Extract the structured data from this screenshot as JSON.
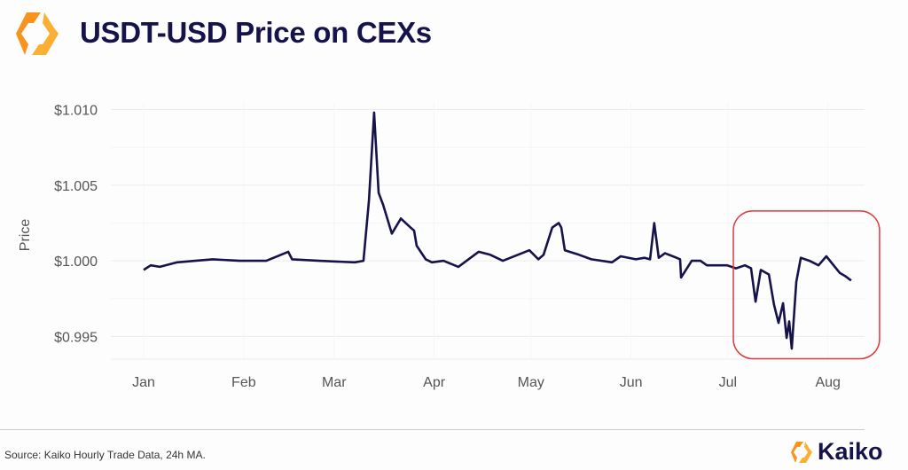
{
  "header": {
    "title": "USDT-USD Price on CEXs",
    "logo_icon": "kaiko-hex-logo-icon"
  },
  "footer": {
    "source": "Source: Kaiko Hourly Trade Data, 24h MA.",
    "brand": "Kaiko"
  },
  "colors": {
    "line": "#16124a",
    "highlight": "#e0393e",
    "logo_orange": "#f7941d",
    "logo_yellow": "#fbb034"
  },
  "chart_data": {
    "type": "line",
    "title": "USDT-USD Price on CEXs",
    "xlabel": "",
    "ylabel": "Price",
    "x_unit": "day of year (0 = Jan 1)",
    "xlim": [
      0,
      228
    ],
    "ylim": [
      0.9935,
      1.0105
    ],
    "grid": true,
    "x_ticks": [
      {
        "label": "Jan",
        "day": 0
      },
      {
        "label": "Feb",
        "day": 31
      },
      {
        "label": "Mar",
        "day": 59
      },
      {
        "label": "Apr",
        "day": 90
      },
      {
        "label": "May",
        "day": 120
      },
      {
        "label": "Jun",
        "day": 151
      },
      {
        "label": "Jul",
        "day": 181
      },
      {
        "label": "Aug",
        "day": 212
      }
    ],
    "y_ticks": [
      {
        "label": "$1.010",
        "value": 1.01
      },
      {
        "label": "$1.005",
        "value": 1.005
      },
      {
        "label": "$1.000",
        "value": 1.0
      },
      {
        "label": "$0.995",
        "value": 0.995
      }
    ],
    "series": [
      {
        "name": "USDT-USD",
        "x": [
          0,
          2.2,
          5,
          10.4,
          16,
          21.4,
          29.7,
          38,
          44.8,
          46,
          54.4,
          65.4,
          68.1,
          69.8,
          71.4,
          72.8,
          74.2,
          76.9,
          79.7,
          82.7,
          83.8,
          84.6,
          87.4,
          89.3,
          92.9,
          97.5,
          103.8,
          107.4,
          111.3,
          119.5,
          122.3,
          123.9,
          126.6,
          128.6,
          129.4,
          130.5,
          134.9,
          138.7,
          145.1,
          147.8,
          152.5,
          155.2,
          156.9,
          158.2,
          159.6,
          161.5,
          165.1,
          166.2,
          166.5,
          169.8,
          172.5,
          174.5,
          180.8,
          183.5,
          186.3,
          188.2,
          189.6,
          191.2,
          193.7,
          195.3,
          196.7,
          198.1,
          199.2,
          200,
          200.8,
          202.2,
          203.6,
          206.3,
          209.1,
          211.5,
          215.7,
          217.3,
          219.2
        ],
        "y": [
          0.9994,
          0.9997,
          0.9996,
          0.9999,
          1.0,
          1.0001,
          1.0,
          1.0,
          1.0006,
          1.0001,
          1.0,
          0.9999,
          1.0,
          1.004,
          1.0098,
          1.0045,
          1.0037,
          1.0018,
          1.0028,
          1.0022,
          1.002,
          1.001,
          1.0001,
          0.9999,
          1.0,
          0.9996,
          1.0006,
          1.0004,
          1.0,
          1.0007,
          1.0001,
          1.0004,
          1.0022,
          1.0025,
          1.0022,
          1.0007,
          1.0004,
          1.0001,
          0.9999,
          1.0003,
          1.0001,
          1.0002,
          1.0001,
          1.0025,
          1.0002,
          1.0005,
          1.0002,
          1.0001,
          0.9989,
          1.0,
          1.0,
          0.9997,
          0.9997,
          0.9995,
          0.9997,
          0.9995,
          0.9973,
          0.9994,
          0.9991,
          0.9971,
          0.9959,
          0.9972,
          0.9949,
          0.996,
          0.9942,
          0.9986,
          1.0002,
          1.0,
          0.9997,
          1.0003,
          0.9992,
          0.999,
          0.9987
        ]
      }
    ],
    "annotations": [
      {
        "type": "highlight-box",
        "x_range": [
          182.7,
          228
        ],
        "y_range": [
          0.99353,
          1.0033
        ]
      }
    ]
  }
}
